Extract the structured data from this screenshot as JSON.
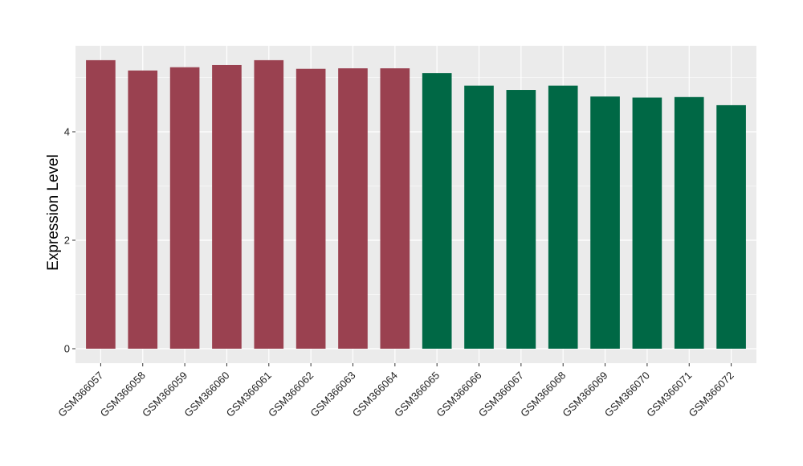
{
  "chart_data": {
    "type": "bar",
    "title": "",
    "xlabel": "",
    "ylabel": "Expression Level",
    "ylim": [
      -0.25,
      5.5
    ],
    "yticks": [
      0,
      2,
      4
    ],
    "grid": true,
    "legend": "none",
    "categories": [
      "GSM366057",
      "GSM366058",
      "GSM366059",
      "GSM366060",
      "GSM366061",
      "GSM366062",
      "GSM366063",
      "GSM366064",
      "GSM366065",
      "GSM366066",
      "GSM366067",
      "GSM366068",
      "GSM366069",
      "GSM366070",
      "GSM366071",
      "GSM366072"
    ],
    "values": [
      5.32,
      5.13,
      5.19,
      5.23,
      5.32,
      5.16,
      5.17,
      5.17,
      5.08,
      4.85,
      4.77,
      4.85,
      4.65,
      4.63,
      4.64,
      4.49
    ],
    "bar_colors": [
      "#9a4150",
      "#9a4150",
      "#9a4150",
      "#9a4150",
      "#9a4150",
      "#9a4150",
      "#9a4150",
      "#9a4150",
      "#006845",
      "#006845",
      "#006845",
      "#006845",
      "#006845",
      "#006845",
      "#006845",
      "#006845"
    ],
    "panel_background": "#ebebeb",
    "gridline_color": "#ffffff"
  }
}
